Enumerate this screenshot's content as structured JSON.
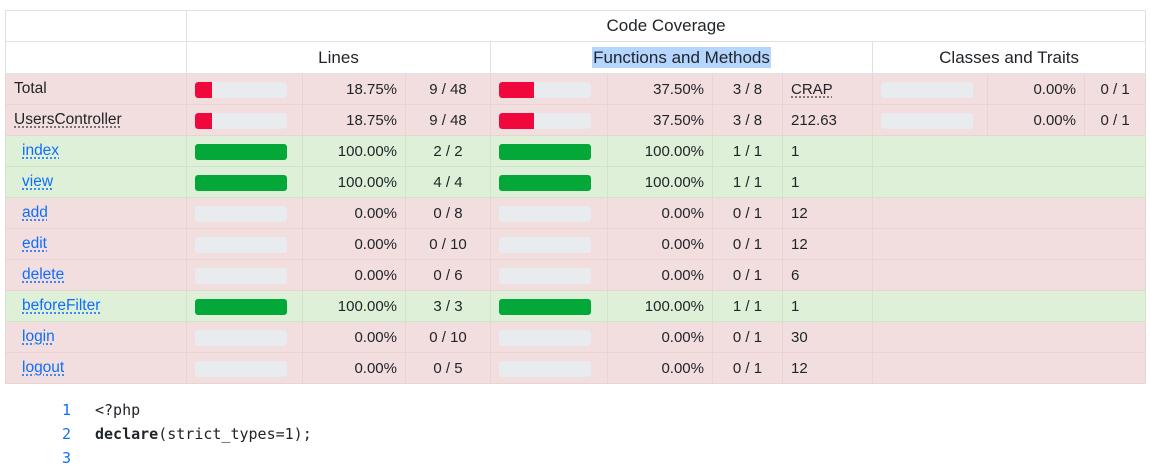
{
  "header": {
    "title": "Code Coverage",
    "lines": "Lines",
    "functions": "Functions and Methods",
    "classes": "Classes and Traits"
  },
  "rows": [
    {
      "name": "Total",
      "link": false,
      "status": "danger",
      "lines_pct": "18.75%",
      "lines_frac": "9 / 48",
      "lines_fill": 18.75,
      "func_pct": "37.50%",
      "func_frac": "3 / 8",
      "func_fill": 37.5,
      "crap": "CRAP",
      "classes_pct": "0.00%",
      "classes_frac": "0 / 1",
      "classes_fill": 0
    },
    {
      "name": "UsersController",
      "link": false,
      "status": "danger",
      "lines_pct": "18.75%",
      "lines_frac": "9 / 48",
      "lines_fill": 18.75,
      "func_pct": "37.50%",
      "func_frac": "3 / 8",
      "func_fill": 37.5,
      "crap": "212.63",
      "classes_pct": "0.00%",
      "classes_frac": "0 / 1",
      "classes_fill": 0
    },
    {
      "name": "index",
      "link": true,
      "status": "success",
      "lines_pct": "100.00%",
      "lines_frac": "2 / 2",
      "lines_fill": 100,
      "func_pct": "100.00%",
      "func_frac": "1 / 1",
      "func_fill": 100,
      "crap": "1"
    },
    {
      "name": "view",
      "link": true,
      "status": "success",
      "lines_pct": "100.00%",
      "lines_frac": "4 / 4",
      "lines_fill": 100,
      "func_pct": "100.00%",
      "func_frac": "1 / 1",
      "func_fill": 100,
      "crap": "1"
    },
    {
      "name": "add",
      "link": true,
      "status": "danger",
      "lines_pct": "0.00%",
      "lines_frac": "0 / 8",
      "lines_fill": 0,
      "func_pct": "0.00%",
      "func_frac": "0 / 1",
      "func_fill": 0,
      "crap": "12"
    },
    {
      "name": "edit",
      "link": true,
      "status": "danger",
      "lines_pct": "0.00%",
      "lines_frac": "0 / 10",
      "lines_fill": 0,
      "func_pct": "0.00%",
      "func_frac": "0 / 1",
      "func_fill": 0,
      "crap": "12"
    },
    {
      "name": "delete",
      "link": true,
      "status": "danger",
      "lines_pct": "0.00%",
      "lines_frac": "0 / 6",
      "lines_fill": 0,
      "func_pct": "0.00%",
      "func_frac": "0 / 1",
      "func_fill": 0,
      "crap": "6"
    },
    {
      "name": "beforeFilter",
      "link": true,
      "status": "success",
      "lines_pct": "100.00%",
      "lines_frac": "3 / 3",
      "lines_fill": 100,
      "func_pct": "100.00%",
      "func_frac": "1 / 1",
      "func_fill": 100,
      "crap": "1"
    },
    {
      "name": "login",
      "link": true,
      "status": "danger",
      "lines_pct": "0.00%",
      "lines_frac": "0 / 10",
      "lines_fill": 0,
      "func_pct": "0.00%",
      "func_frac": "0 / 1",
      "func_fill": 0,
      "crap": "30"
    },
    {
      "name": "logout",
      "link": true,
      "status": "danger",
      "lines_pct": "0.00%",
      "lines_frac": "0 / 5",
      "lines_fill": 0,
      "func_pct": "0.00%",
      "func_frac": "0 / 1",
      "func_fill": 0,
      "crap": "12"
    }
  ],
  "code": {
    "lines": [
      {
        "num": "1",
        "text": "<?php"
      },
      {
        "num": "2",
        "kw": "declare",
        "text": "(strict_types=1);"
      },
      {
        "num": "3",
        "text": ""
      }
    ]
  },
  "colors": {
    "danger_row": "#f2dede",
    "success_row": "#dff0d8",
    "bar_low": "#f0083c",
    "bar_high": "#04a839",
    "bar_track": "#e9ecef",
    "link": "#0d6efd",
    "selection": "#b4d5fe"
  }
}
